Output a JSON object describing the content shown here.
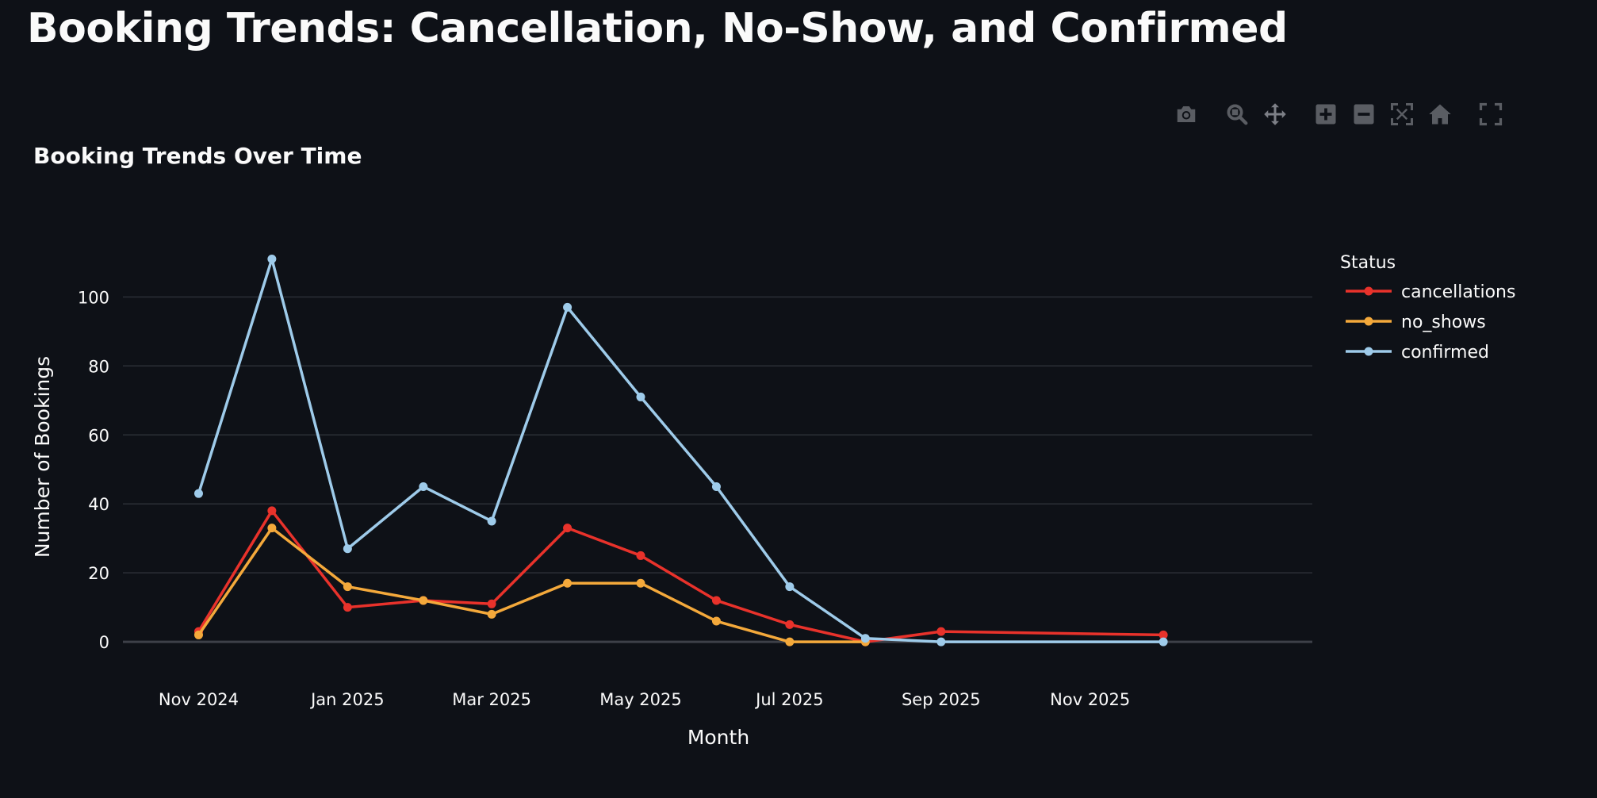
{
  "page": {
    "title": "Booking Trends: Cancellation, No-Show, and Confirmed"
  },
  "toolbar": {
    "icons": [
      "camera-icon",
      "zoom-icon",
      "pan-icon",
      "zoom-in-icon",
      "zoom-out-icon",
      "autoscale-icon",
      "reset-axes-icon",
      "fullscreen-icon"
    ]
  },
  "chart_data": {
    "type": "line",
    "title": "Booking Trends Over Time",
    "xlabel": "Month",
    "ylabel": "Number of Bookings",
    "x_tick_labels": [
      "Nov 2024",
      "Jan 2025",
      "Mar 2025",
      "May 2025",
      "Jul 2025",
      "Sep 2025",
      "Nov 2025"
    ],
    "y_ticks": [
      0,
      20,
      40,
      60,
      80,
      100
    ],
    "ylim": [
      -14,
      124
    ],
    "grid": true,
    "legend": {
      "title": "Status",
      "position": "top-right"
    },
    "x": [
      "2024-11-01",
      "2024-12-01",
      "2025-01-01",
      "2025-02-01",
      "2025-03-01",
      "2025-04-01",
      "2025-05-01",
      "2025-06-01",
      "2025-07-01",
      "2025-08-01",
      "2025-09-01",
      "2025-12-01"
    ],
    "series": [
      {
        "name": "cancellations",
        "color": "#e8322b",
        "values": [
          3,
          38,
          10,
          12,
          11,
          33,
          25,
          12,
          5,
          0,
          3,
          2
        ]
      },
      {
        "name": "no_shows",
        "color": "#f4a93b",
        "values": [
          2,
          33,
          16,
          12,
          8,
          17,
          17,
          6,
          0,
          0,
          null,
          null
        ]
      },
      {
        "name": "confirmed",
        "color": "#9ecbea",
        "values": [
          43,
          111,
          27,
          45,
          35,
          97,
          71,
          45,
          16,
          1,
          0,
          0
        ]
      }
    ]
  }
}
